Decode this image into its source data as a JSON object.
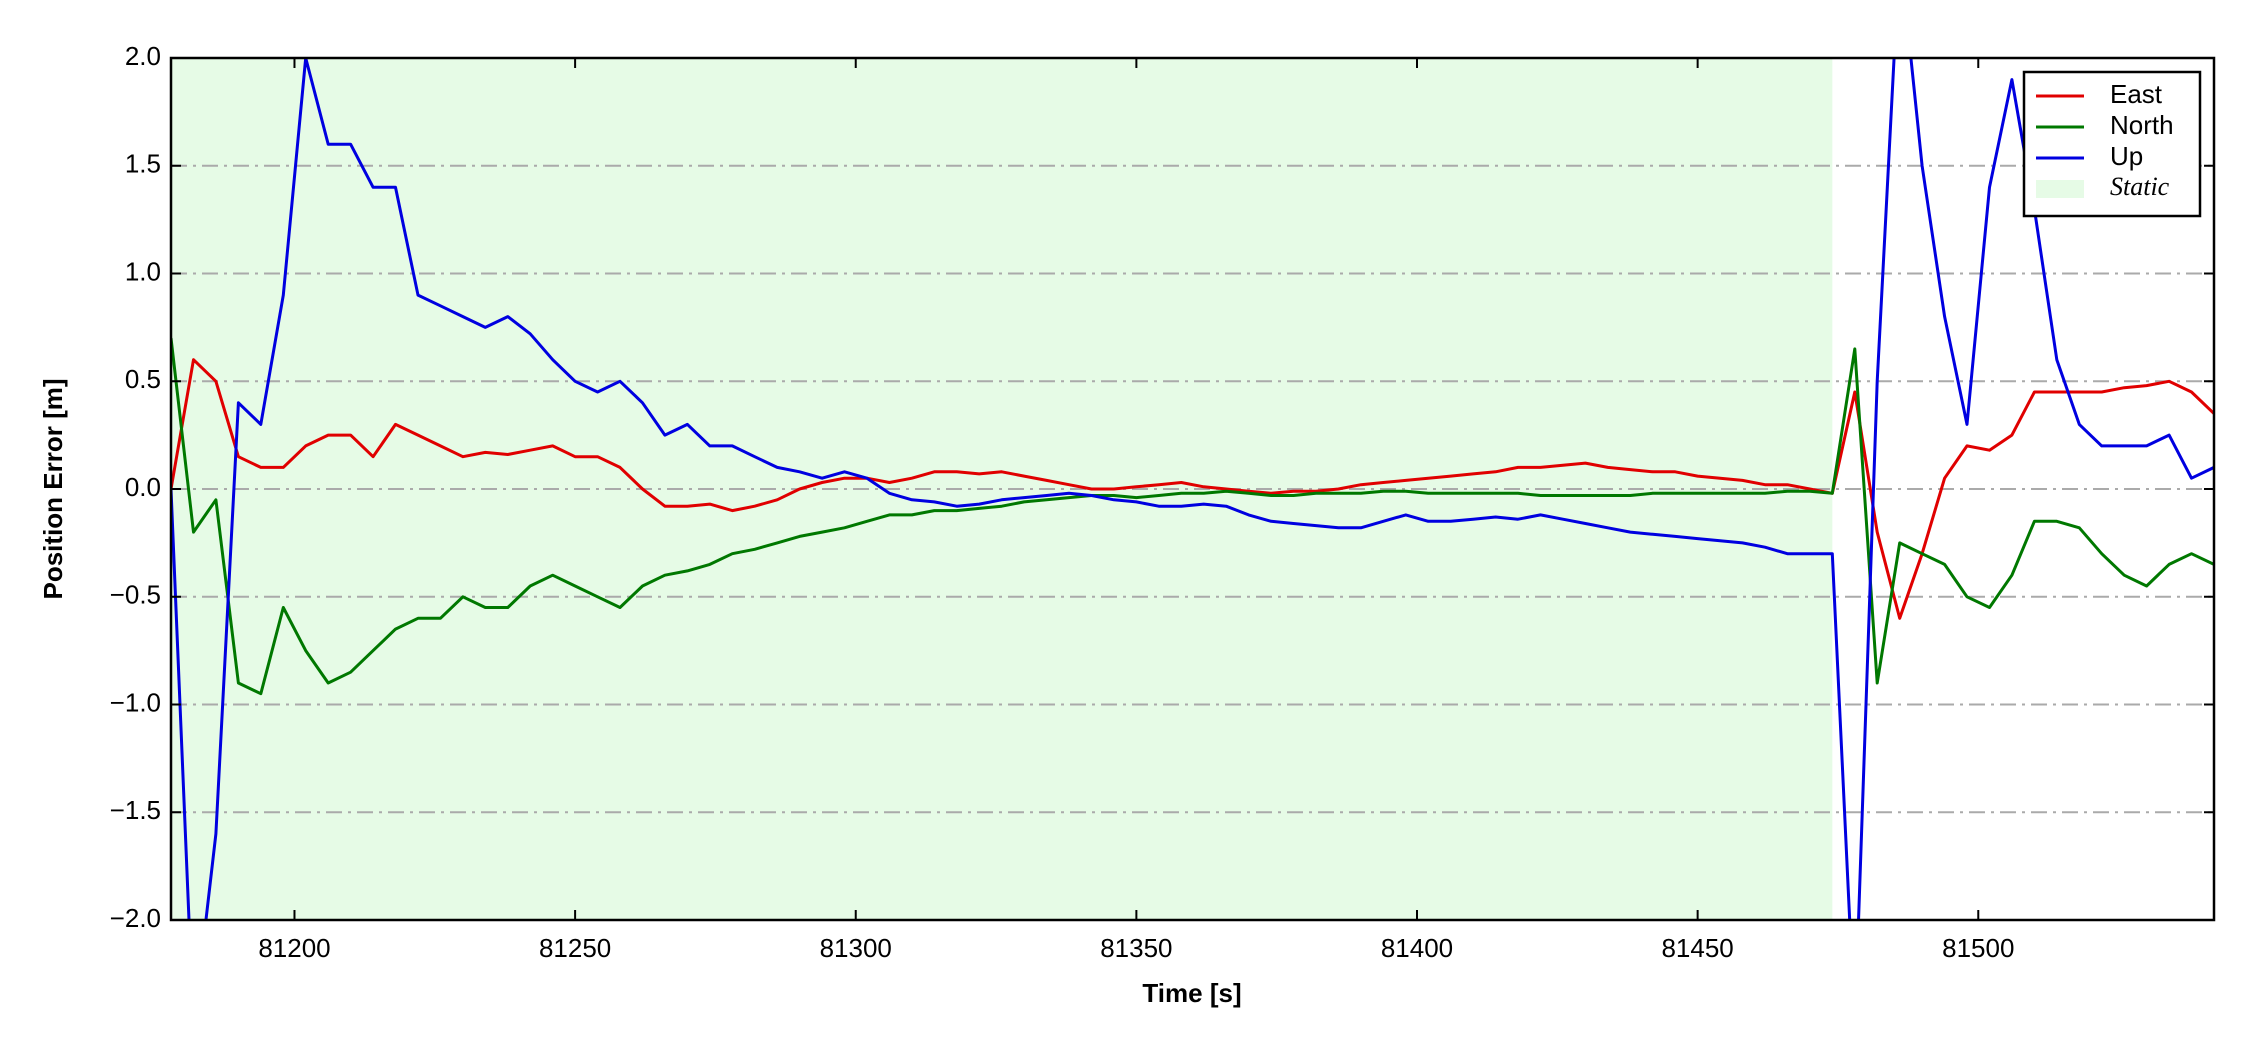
{
  "chart_data": {
    "type": "line",
    "xlabel": "Time [s]",
    "ylabel": "Position Error [m]",
    "xlim": [
      81178,
      81542
    ],
    "ylim": [
      -2,
      2
    ],
    "xticks": [
      81200,
      81250,
      81300,
      81350,
      81400,
      81450,
      81500
    ],
    "yticks": [
      {
        "value": -2,
        "label": "−2.0"
      },
      {
        "value": -1.5,
        "label": "−1.5"
      },
      {
        "value": -1,
        "label": "−1.0"
      },
      {
        "value": -0.5,
        "label": "−0.5"
      },
      {
        "value": 0,
        "label": "0.0"
      },
      0.5,
      {
        "value": 1,
        "label": "1.0"
      },
      1.5,
      {
        "value": 2,
        "label": "2.0"
      }
    ],
    "grid": true,
    "legend": "upper right",
    "shaded_regions": [
      {
        "name": "Static",
        "color": "#e6fbe6",
        "x": [
          81178,
          81474
        ]
      }
    ],
    "x": [
      81178,
      81182,
      81186,
      81190,
      81194,
      81198,
      81202,
      81206,
      81210,
      81214,
      81218,
      81222,
      81226,
      81230,
      81234,
      81238,
      81242,
      81246,
      81250,
      81254,
      81258,
      81262,
      81266,
      81270,
      81274,
      81278,
      81282,
      81286,
      81290,
      81294,
      81298,
      81302,
      81306,
      81310,
      81314,
      81318,
      81322,
      81326,
      81330,
      81334,
      81338,
      81342,
      81346,
      81350,
      81354,
      81358,
      81362,
      81366,
      81370,
      81374,
      81378,
      81382,
      81386,
      81390,
      81394,
      81398,
      81402,
      81406,
      81410,
      81414,
      81418,
      81422,
      81426,
      81430,
      81434,
      81438,
      81442,
      81446,
      81450,
      81454,
      81458,
      81462,
      81466,
      81470,
      81474,
      81478,
      81482,
      81486,
      81490,
      81494,
      81498,
      81502,
      81506,
      81510,
      81514,
      81518,
      81522,
      81526,
      81530,
      81534,
      81538,
      81542
    ],
    "series": [
      {
        "name": "East",
        "color": "#e00000",
        "values": [
          0.0,
          0.6,
          0.5,
          0.15,
          0.1,
          0.1,
          0.2,
          0.25,
          0.25,
          0.15,
          0.3,
          0.25,
          0.2,
          0.15,
          0.17,
          0.16,
          0.18,
          0.2,
          0.15,
          0.15,
          0.1,
          0.0,
          -0.08,
          -0.08,
          -0.07,
          -0.1,
          -0.08,
          -0.05,
          0.0,
          0.03,
          0.05,
          0.05,
          0.03,
          0.05,
          0.08,
          0.08,
          0.07,
          0.08,
          0.06,
          0.04,
          0.02,
          0.0,
          0.0,
          0.01,
          0.02,
          0.03,
          0.01,
          0.0,
          -0.01,
          -0.02,
          -0.01,
          -0.01,
          0.0,
          0.02,
          0.03,
          0.04,
          0.05,
          0.06,
          0.07,
          0.08,
          0.1,
          0.1,
          0.11,
          0.12,
          0.1,
          0.09,
          0.08,
          0.08,
          0.06,
          0.05,
          0.04,
          0.02,
          0.02,
          0.0,
          -0.02,
          0.45,
          -0.2,
          -0.6,
          -0.3,
          0.05,
          0.2,
          0.18,
          0.25,
          0.45,
          0.45,
          0.45,
          0.45,
          0.47,
          0.48,
          0.5,
          0.45,
          0.35
        ]
      },
      {
        "name": "North",
        "color": "#007800",
        "values": [
          0.7,
          -0.2,
          -0.05,
          -0.9,
          -0.95,
          -0.55,
          -0.75,
          -0.9,
          -0.85,
          -0.75,
          -0.65,
          -0.6,
          -0.6,
          -0.5,
          -0.55,
          -0.55,
          -0.45,
          -0.4,
          -0.45,
          -0.5,
          -0.55,
          -0.45,
          -0.4,
          -0.38,
          -0.35,
          -0.3,
          -0.28,
          -0.25,
          -0.22,
          -0.2,
          -0.18,
          -0.15,
          -0.12,
          -0.12,
          -0.1,
          -0.1,
          -0.09,
          -0.08,
          -0.06,
          -0.05,
          -0.04,
          -0.03,
          -0.03,
          -0.04,
          -0.03,
          -0.02,
          -0.02,
          -0.01,
          -0.02,
          -0.03,
          -0.03,
          -0.02,
          -0.02,
          -0.02,
          -0.01,
          -0.01,
          -0.02,
          -0.02,
          -0.02,
          -0.02,
          -0.02,
          -0.03,
          -0.03,
          -0.03,
          -0.03,
          -0.03,
          -0.02,
          -0.02,
          -0.02,
          -0.02,
          -0.02,
          -0.02,
          -0.01,
          -0.01,
          -0.02,
          0.65,
          -0.9,
          -0.25,
          -0.3,
          -0.35,
          -0.5,
          -0.55,
          -0.4,
          -0.15,
          -0.15,
          -0.18,
          -0.3,
          -0.4,
          -0.45,
          -0.35,
          -0.3,
          -0.35
        ]
      },
      {
        "name": "Up",
        "color": "#0000e0",
        "values": [
          0.0,
          -2.5,
          -1.6,
          0.4,
          0.3,
          0.9,
          2.0,
          1.6,
          1.6,
          1.4,
          1.4,
          0.9,
          0.85,
          0.8,
          0.75,
          0.8,
          0.72,
          0.6,
          0.5,
          0.45,
          0.5,
          0.4,
          0.25,
          0.3,
          0.2,
          0.2,
          0.15,
          0.1,
          0.08,
          0.05,
          0.08,
          0.05,
          -0.02,
          -0.05,
          -0.06,
          -0.08,
          -0.07,
          -0.05,
          -0.04,
          -0.03,
          -0.02,
          -0.03,
          -0.05,
          -0.06,
          -0.08,
          -0.08,
          -0.07,
          -0.08,
          -0.12,
          -0.15,
          -0.16,
          -0.17,
          -0.18,
          -0.18,
          -0.15,
          -0.12,
          -0.15,
          -0.15,
          -0.14,
          -0.13,
          -0.14,
          -0.12,
          -0.14,
          -0.16,
          -0.18,
          -0.2,
          -0.21,
          -0.22,
          -0.23,
          -0.24,
          -0.25,
          -0.27,
          -0.3,
          -0.3,
          -0.3,
          -2.5,
          0.5,
          2.5,
          1.5,
          0.8,
          0.3,
          1.4,
          1.9,
          1.3,
          0.6,
          0.3,
          0.2,
          0.2,
          0.2,
          0.25,
          0.05,
          0.1
        ]
      }
    ]
  }
}
